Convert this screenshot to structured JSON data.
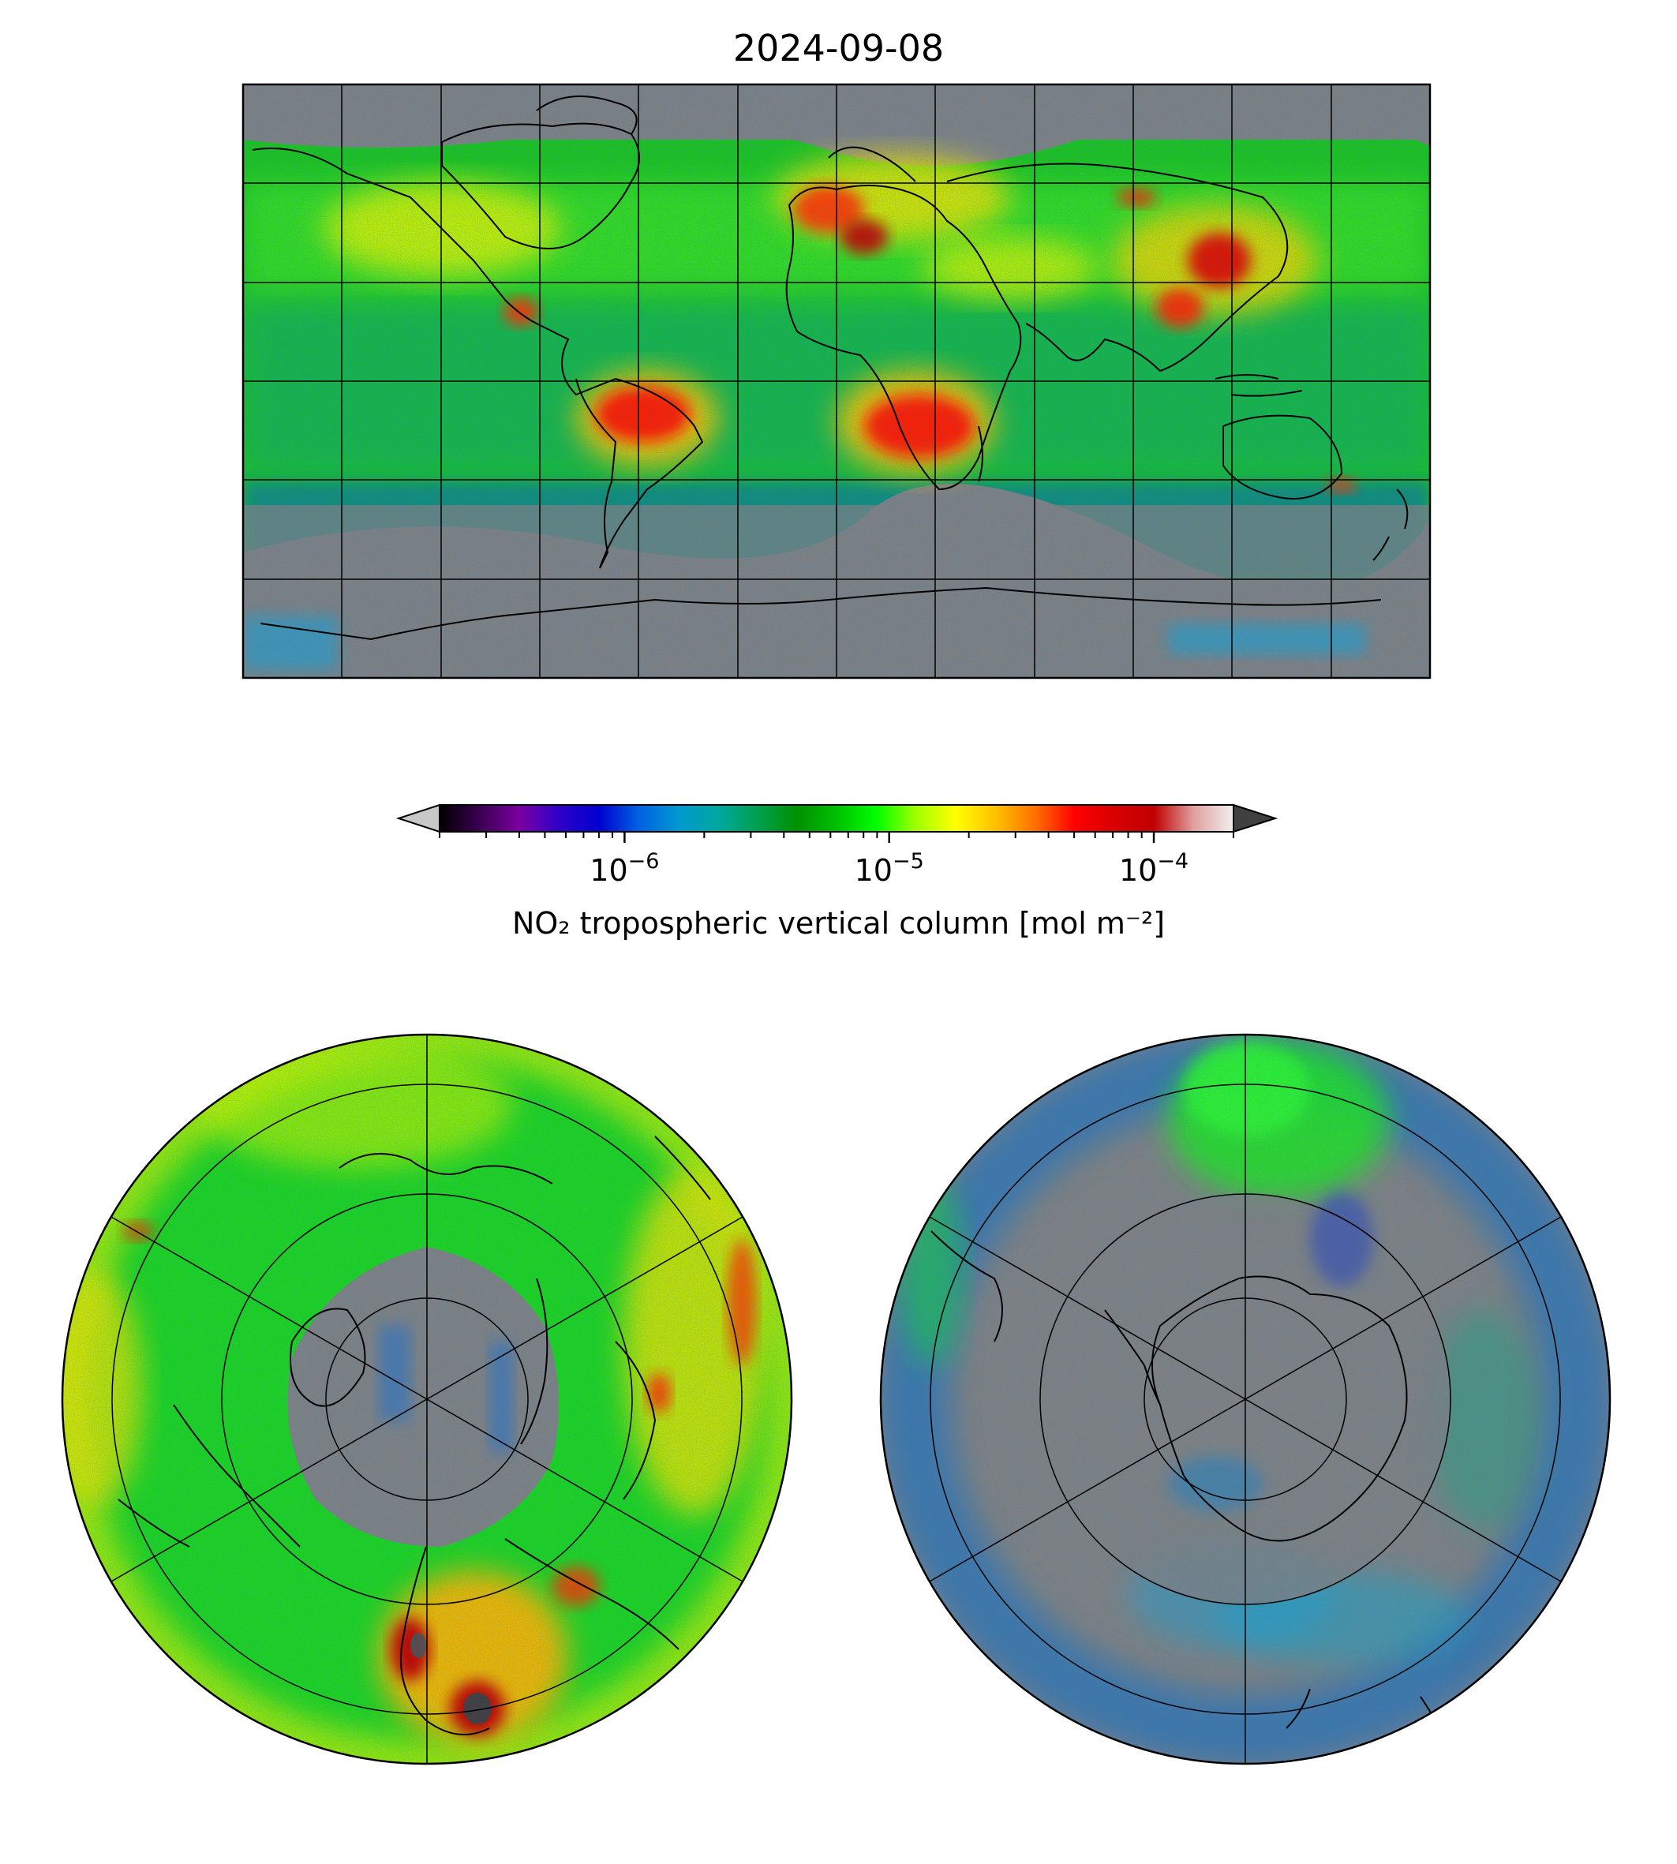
{
  "figure": {
    "title": "2024-09-08"
  },
  "colorbar": {
    "label": "NO₂ tropospheric vertical column [mol m⁻²]",
    "scale": "log",
    "range": [
      2e-07,
      0.0002
    ],
    "extend": "both",
    "ticks": [
      {
        "value": 1e-06,
        "base": "10",
        "exp": "−6"
      },
      {
        "value": 1e-05,
        "base": "10",
        "exp": "−5"
      },
      {
        "value": 0.0001,
        "base": "10",
        "exp": "−4"
      }
    ],
    "colormap": [
      "#000000",
      "#3a0050",
      "#7a00a0",
      "#3000c8",
      "#0000d0",
      "#0060e0",
      "#0098d0",
      "#00a8a0",
      "#00a050",
      "#009000",
      "#00c000",
      "#00ff00",
      "#a0ff00",
      "#ffff00",
      "#ffc000",
      "#ff7000",
      "#ff0000",
      "#d80000",
      "#c00000",
      "#e0a0a0",
      "#f0f0f0"
    ],
    "under_color": "#c8c8c8",
    "over_color": "#404040"
  },
  "map_panels": [
    {
      "id": "global",
      "projection": "equirectangular",
      "gridlines": "every 30°",
      "no_data_color": "#808080"
    },
    {
      "id": "north-polar",
      "projection": "north polar stereographic",
      "gridlines": "circles + 6 meridians"
    },
    {
      "id": "south-polar",
      "projection": "south polar stereographic",
      "gridlines": "circles + 6 meridians"
    }
  ]
}
